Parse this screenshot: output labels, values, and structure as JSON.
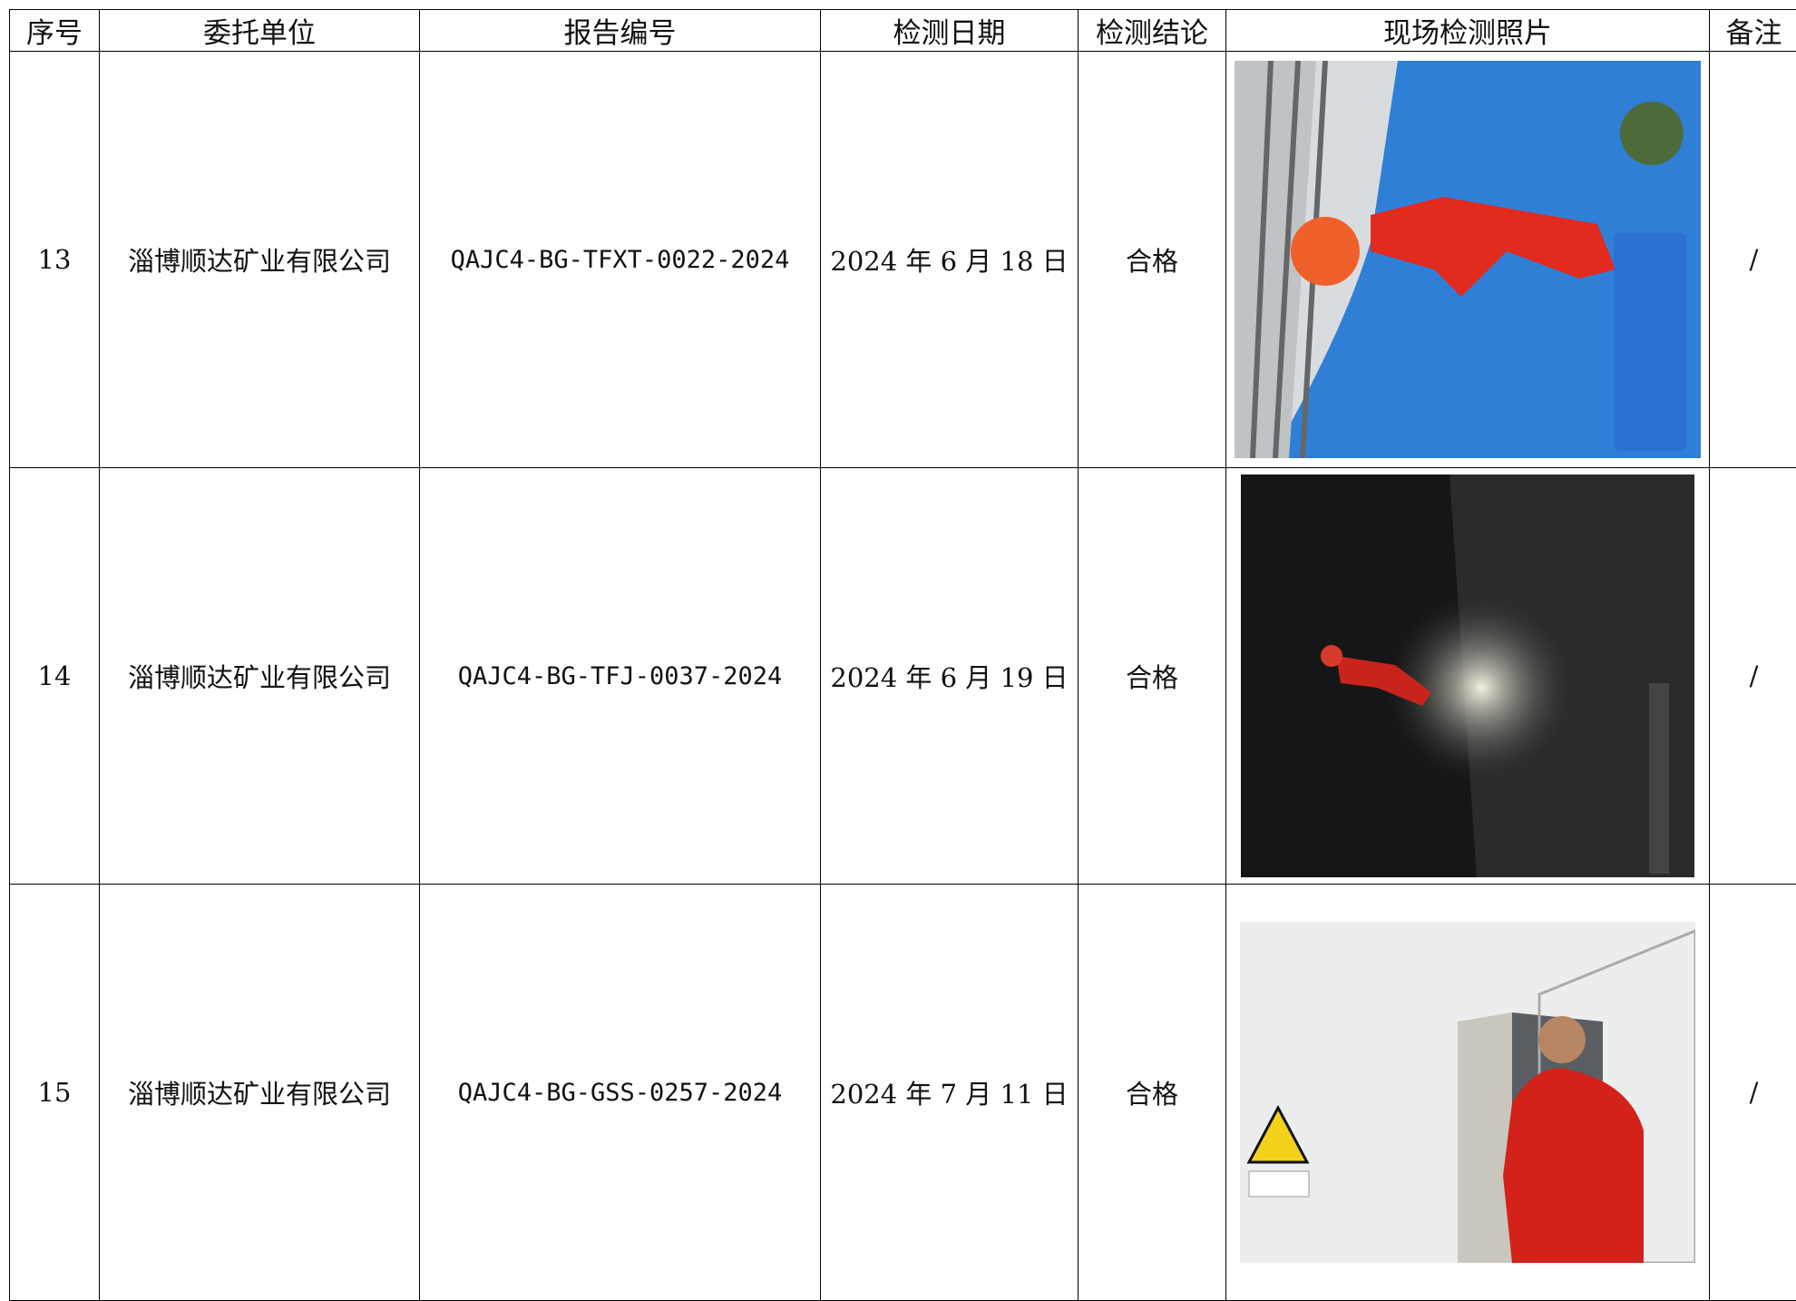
{
  "header": {
    "columns": [
      "序号",
      "委托单位",
      "报告编号",
      "检测日期",
      "检测结论",
      "现场检测照片",
      "备注"
    ]
  },
  "table": {
    "rows": [
      [
        "13",
        "淄博顺达矿业有限公司",
        "QAJC4-BG-TFXT-0022-2024",
        "2024 年 6 月 18 日",
        "合格",
        "/"
      ],
      [
        "14",
        "淄博顺达矿业有限公司",
        "QAJC4-BG-TFJ-0037-2024",
        "2024 年 6 月 19 日",
        "合格",
        "/"
      ],
      [
        "15",
        "淄博顺达矿业有限公司",
        "QAJC4-BG-GSS-0257-2024",
        "2024 年 7 月 11 日",
        "合格",
        "/"
      ]
    ]
  }
}
